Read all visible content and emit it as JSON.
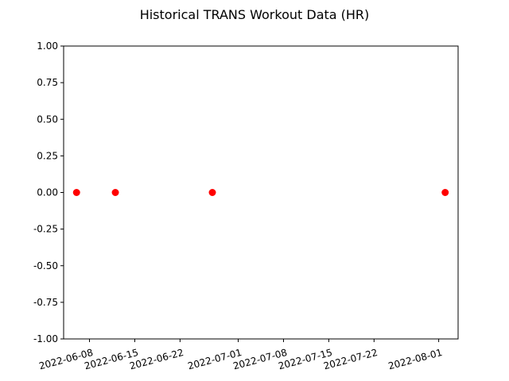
{
  "chart_data": {
    "type": "scatter",
    "title": "Historical TRANS Workout Data (HR)",
    "xlabel": "",
    "ylabel": "",
    "x_axis_type": "date",
    "xlim": [
      "2022-06-04",
      "2022-08-04"
    ],
    "ylim": [
      -1.0,
      1.0
    ],
    "x_ticks": [
      "2022-06-08",
      "2022-06-15",
      "2022-06-22",
      "2022-07-01",
      "2022-07-08",
      "2022-07-15",
      "2022-07-22",
      "2022-08-01"
    ],
    "y_ticks": [
      "1.00",
      "0.75",
      "0.50",
      "0.25",
      "0.00",
      "-0.25",
      "-0.50",
      "-0.75",
      "-1.00"
    ],
    "grid": false,
    "legend": "none",
    "marker_color": "#ff0000",
    "series": [
      {
        "points": [
          {
            "x": "2022-06-06",
            "y": 0.0
          },
          {
            "x": "2022-06-12",
            "y": 0.0
          },
          {
            "x": "2022-06-27",
            "y": 0.0
          },
          {
            "x": "2022-08-02",
            "y": 0.0
          }
        ]
      }
    ]
  }
}
